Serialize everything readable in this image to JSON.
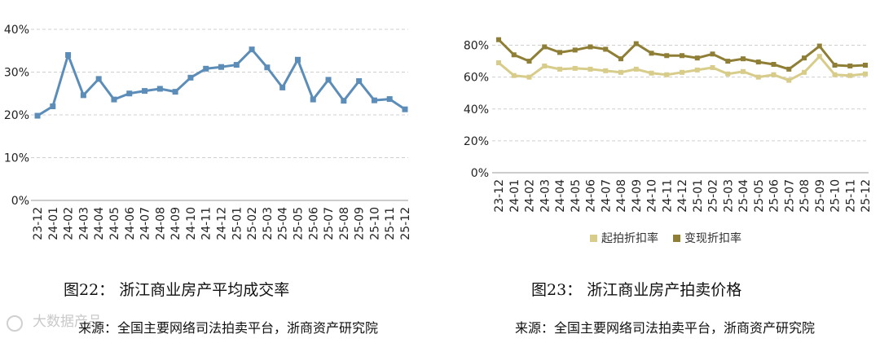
{
  "chart_data": [
    {
      "type": "line",
      "title": "",
      "xlabel": "",
      "ylabel": "",
      "ylim": [
        0,
        40
      ],
      "yticks": [
        "0%",
        "10%",
        "20%",
        "30%",
        "40%"
      ],
      "grid": true,
      "categories": [
        "23-12",
        "24-01",
        "24-02",
        "24-03",
        "24-04",
        "24-05",
        "24-06",
        "24-07",
        "24-08",
        "24-09",
        "24-10",
        "24-11",
        "24-12",
        "25-01",
        "25-02",
        "25-03",
        "25-04",
        "25-05",
        "25-06",
        "25-07",
        "25-08",
        "25-09",
        "25-10",
        "25-11",
        "25-12"
      ],
      "series": [
        {
          "name": "",
          "color": "#5b8db8",
          "values": [
            19.8,
            22.0,
            34.0,
            24.6,
            28.4,
            23.6,
            25.0,
            25.6,
            26.1,
            25.4,
            28.7,
            30.8,
            31.2,
            31.7,
            35.3,
            31.1,
            26.4,
            32.9,
            23.6,
            28.2,
            23.3,
            27.9,
            23.4,
            23.7,
            21.3
          ]
        }
      ]
    },
    {
      "type": "line",
      "title": "",
      "xlabel": "",
      "ylabel": "",
      "ylim": [
        0,
        90
      ],
      "yticks": [
        "0%",
        "20%",
        "40%",
        "60%",
        "80%"
      ],
      "grid": true,
      "legend_position": "bottom",
      "categories": [
        "23-12",
        "24-01",
        "24-02",
        "24-03",
        "24-04",
        "24-05",
        "24-06",
        "24-07",
        "24-08",
        "24-09",
        "24-10",
        "24-11",
        "24-12",
        "25-01",
        "25-02",
        "25-03",
        "25-04",
        "25-05",
        "25-06",
        "25-07",
        "25-08",
        "25-09",
        "25-10",
        "25-11",
        "25-12"
      ],
      "series": [
        {
          "name": "起拍折扣率",
          "color": "#d8cc8a",
          "values": [
            69,
            61,
            60,
            67,
            65,
            65.5,
            65,
            64,
            63,
            65,
            62.5,
            61.5,
            63,
            64.5,
            66,
            62,
            63.5,
            60,
            61.5,
            58,
            63,
            73,
            61.5,
            61,
            62
          ]
        },
        {
          "name": "变现折扣率",
          "color": "#8f7f36",
          "values": [
            83.5,
            74,
            70,
            79,
            75.5,
            77,
            79,
            77.5,
            71.5,
            81,
            75,
            73.5,
            73.5,
            72,
            74.5,
            70,
            71.5,
            69.5,
            68,
            65,
            72,
            79.5,
            67.5,
            67,
            67.5
          ]
        }
      ]
    }
  ],
  "captions": {
    "left_title": "图22：   浙江商业房产平均成交率",
    "right_title": "图23：   浙江商业房产拍卖价格",
    "left_source": "来源：全国主要网络司法拍卖平台，浙商资产研究院",
    "right_source": "来源：全国主要网络司法拍卖平台，浙商资产研究院"
  },
  "watermark": {
    "text": "大数据产品"
  }
}
